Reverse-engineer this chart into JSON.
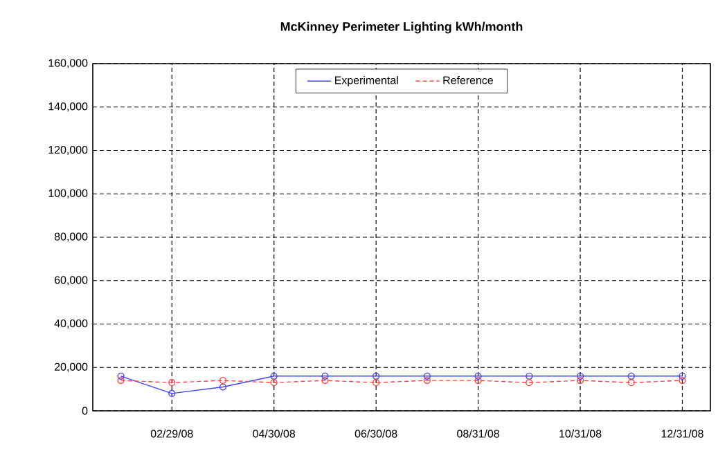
{
  "chart_data": {
    "type": "line",
    "title": "McKinney Perimeter Lighting kWh/month",
    "categories": [
      null,
      "02/29/08",
      null,
      "04/30/08",
      null,
      "06/30/08",
      null,
      "08/31/08",
      null,
      "10/31/08",
      null,
      "12/31/08"
    ],
    "series": [
      {
        "name": "Experimental",
        "color": "#4040ff",
        "line_style": "solid",
        "values": [
          16000,
          8000,
          11000,
          16000,
          16000,
          16000,
          16000,
          16000,
          16000,
          16000,
          16000,
          16000
        ]
      },
      {
        "name": "Reference",
        "color": "#ff4040",
        "line_style": "dashed",
        "values": [
          14000,
          13000,
          14000,
          13000,
          14000,
          13000,
          14000,
          14000,
          13000,
          14000,
          13000,
          14000
        ]
      }
    ],
    "ylim": [
      0,
      160000
    ],
    "yticks": [
      {
        "value": 0,
        "label": "0"
      },
      {
        "value": 20000,
        "label": "20,000"
      },
      {
        "value": 40000,
        "label": "40,000"
      },
      {
        "value": 60000,
        "label": "60,000"
      },
      {
        "value": 80000,
        "label": "80,000"
      },
      {
        "value": 100000,
        "label": "100,000"
      },
      {
        "value": 120000,
        "label": "120,000"
      },
      {
        "value": 140000,
        "label": "140,000"
      },
      {
        "value": 160000,
        "label": "160,000"
      }
    ],
    "grid": true,
    "legend": "top",
    "marker": "circle"
  }
}
